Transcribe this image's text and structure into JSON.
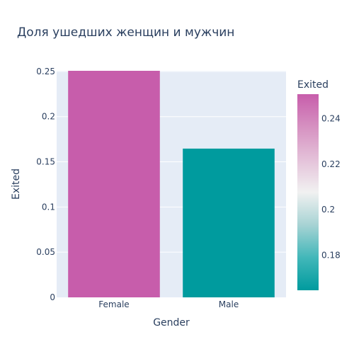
{
  "chart_data": {
    "type": "bar",
    "title": "Доля ушедших женщин и мужчин",
    "xlabel": "Gender",
    "ylabel": "Exited",
    "categories": [
      "Female",
      "Male"
    ],
    "values": [
      0.2507,
      0.1646
    ],
    "ylim": [
      0,
      0.2507
    ],
    "y_ticks": [
      0,
      0.05,
      0.1,
      0.15,
      0.2,
      0.25
    ],
    "y_tick_labels": [
      "0",
      "0.05",
      "0.1",
      "0.15",
      "0.2",
      "0.25"
    ],
    "grid": true,
    "colorbar": {
      "title": "Exited",
      "range": [
        0.1646,
        0.2507
      ],
      "ticks": [
        0.18,
        0.2,
        0.22,
        0.24
      ],
      "tick_labels": [
        "0.18",
        "0.2",
        "0.22",
        "0.24"
      ],
      "colorscale": [
        "#009b9e",
        "#42b7b9",
        "#a7d3d4",
        "#f1f1f1",
        "#e4c1d9",
        "#d691c1",
        "#c75dab"
      ]
    },
    "plot_background": "#e5ecf6",
    "text_color": "#2a3f5f"
  }
}
